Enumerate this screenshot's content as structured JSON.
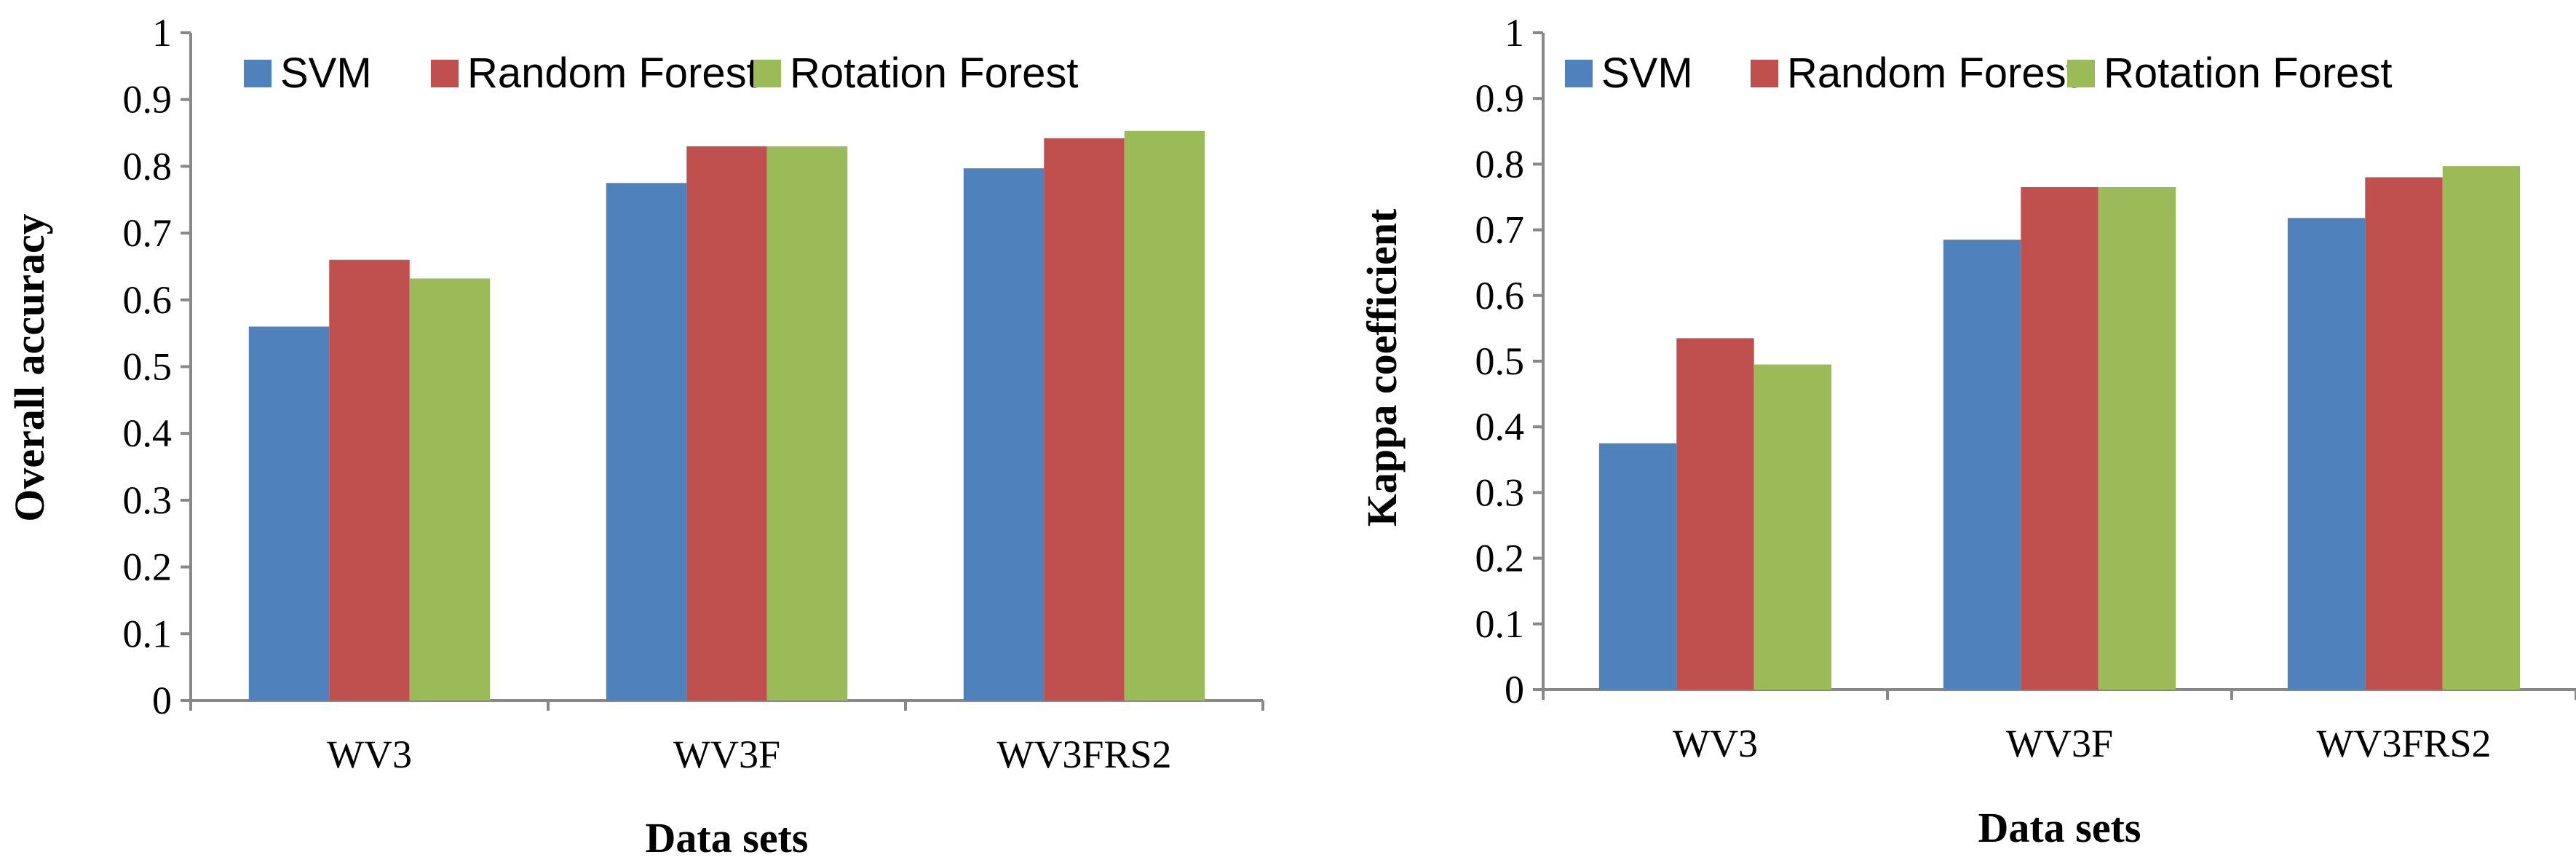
{
  "chart_data": [
    {
      "type": "bar",
      "title": "",
      "xlabel": "Data sets",
      "ylabel": "Overall accuracy",
      "ylim": [
        0,
        1
      ],
      "yticks": [
        "0",
        "0.1",
        "0.2",
        "0.3",
        "0.4",
        "0.5",
        "0.6",
        "0.7",
        "0.8",
        "0.9",
        "1"
      ],
      "categories": [
        "WV3",
        "WV3F",
        "WV3FRS2"
      ],
      "legend_position": "top",
      "series": [
        {
          "name": "SVM",
          "color": "#4f81bd",
          "values": [
            0.56,
            0.775,
            0.797
          ]
        },
        {
          "name": "Random Forest",
          "color": "#c0504d",
          "values": [
            0.66,
            0.83,
            0.842
          ]
        },
        {
          "name": "Rotation Forest",
          "color": "#9bbb59",
          "values": [
            0.632,
            0.83,
            0.853
          ]
        }
      ]
    },
    {
      "type": "bar",
      "title": "",
      "xlabel": "Data sets",
      "ylabel": "Kappa coefficient",
      "ylim": [
        0,
        1
      ],
      "yticks": [
        "0",
        "0.1",
        "0.2",
        "0.3",
        "0.4",
        "0.5",
        "0.6",
        "0.7",
        "0.8",
        "0.9",
        "1"
      ],
      "categories": [
        "WV3",
        "WV3F",
        "WV3FRS2"
      ],
      "legend_position": "top",
      "series": [
        {
          "name": "SVM",
          "color": "#4f81bd",
          "values": [
            0.375,
            0.685,
            0.718
          ]
        },
        {
          "name": "Random Forest",
          "color": "#c0504d",
          "values": [
            0.535,
            0.765,
            0.78
          ]
        },
        {
          "name": "Rotation Forest",
          "color": "#9bbb59",
          "values": [
            0.495,
            0.765,
            0.797
          ]
        }
      ]
    }
  ]
}
